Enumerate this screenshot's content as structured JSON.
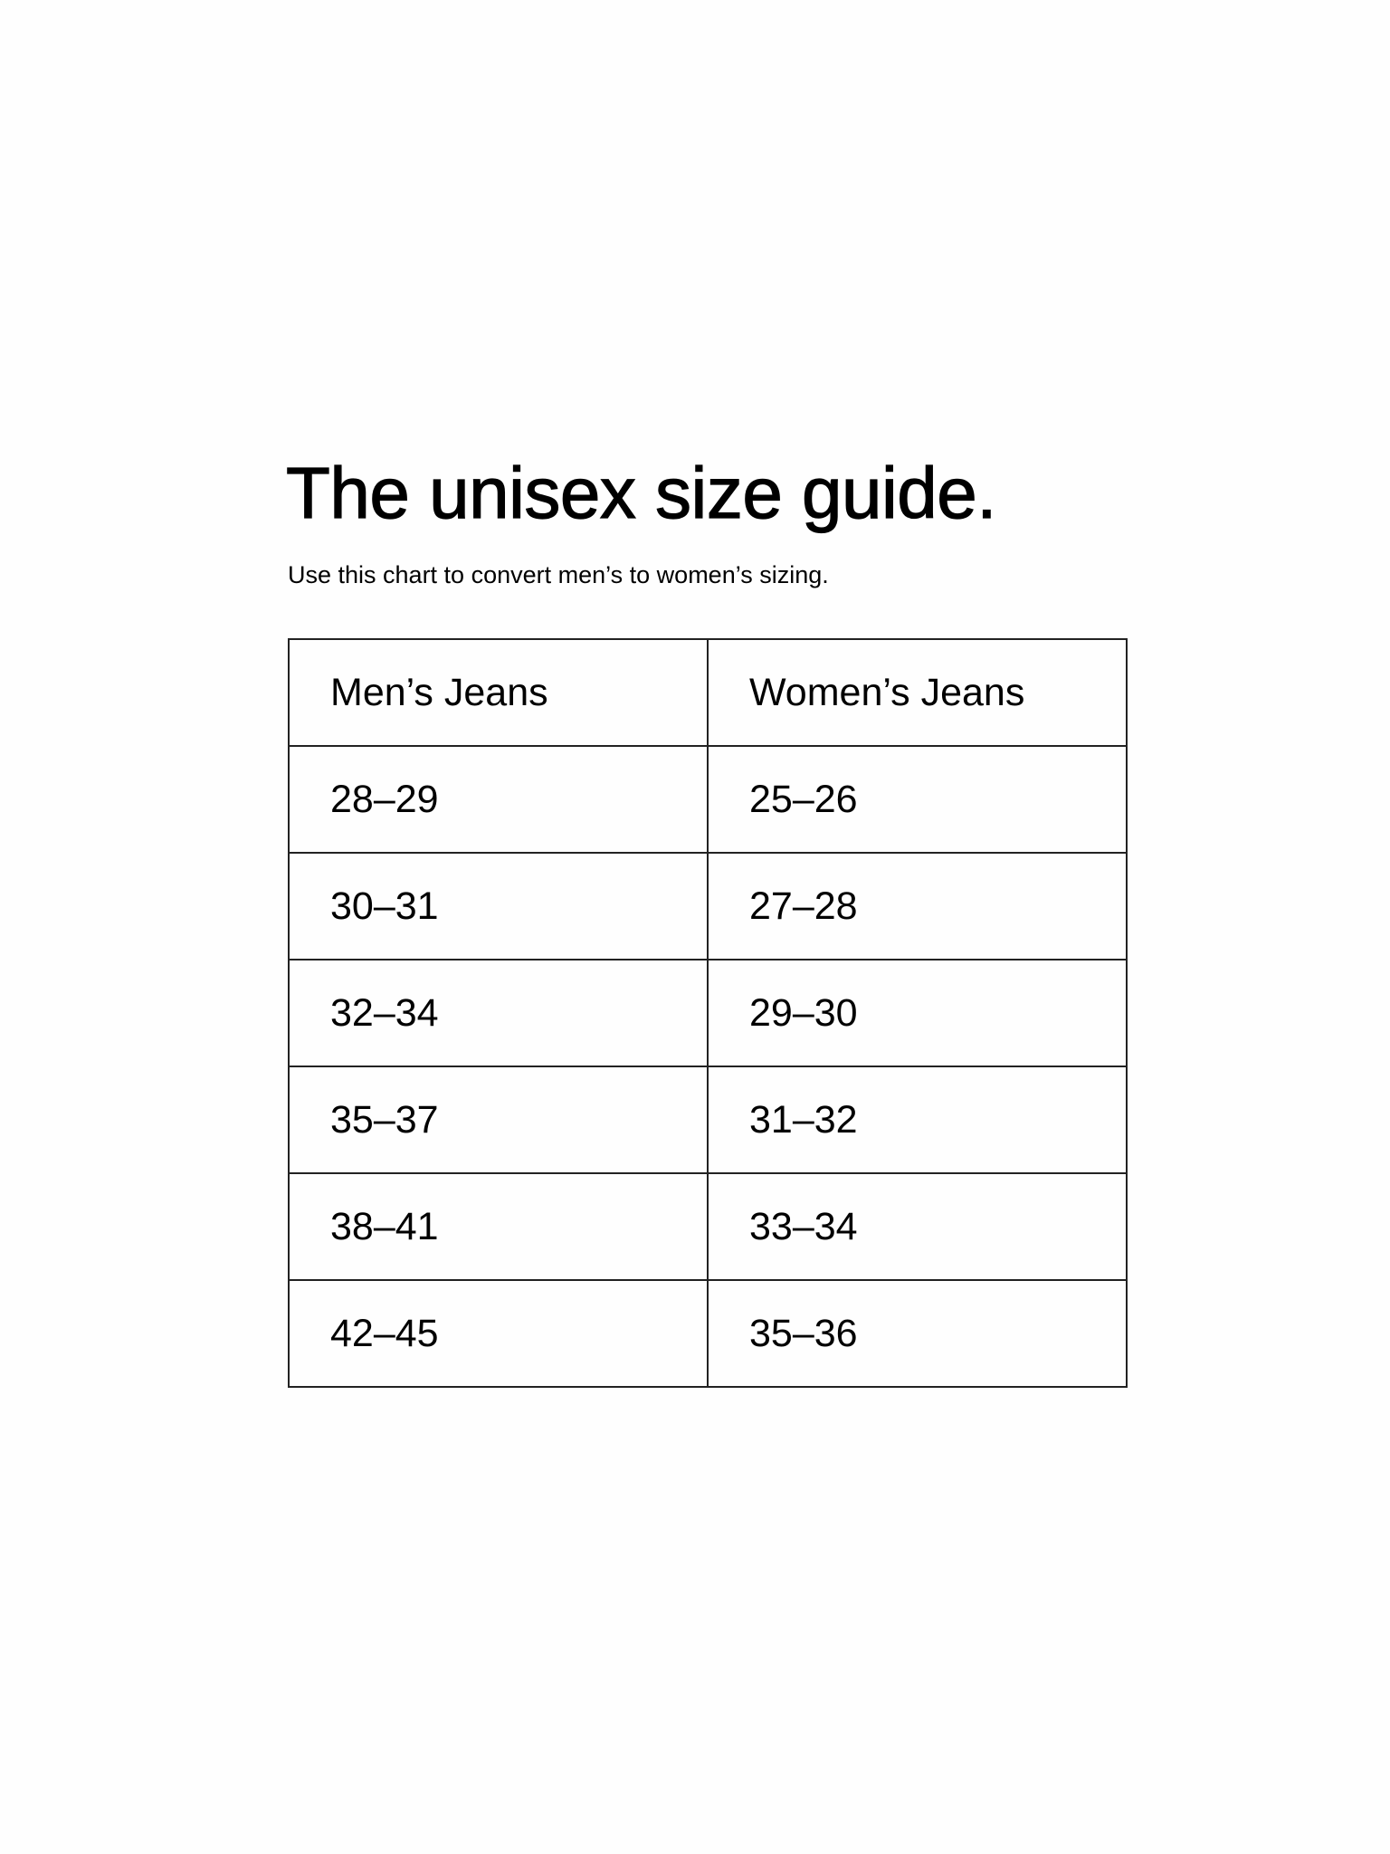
{
  "title": "The unisex size guide.",
  "subtitle": "Use this chart to convert men’s to women’s sizing.",
  "table": {
    "headers": [
      "Men’s Jeans",
      "Women’s Jeans"
    ],
    "rows": [
      [
        "28–29",
        "25–26"
      ],
      [
        "30–31",
        "27–28"
      ],
      [
        "32–34",
        "29–30"
      ],
      [
        "35–37",
        "31–32"
      ],
      [
        "38–41",
        "33–34"
      ],
      [
        "42–45",
        "35–36"
      ]
    ]
  }
}
